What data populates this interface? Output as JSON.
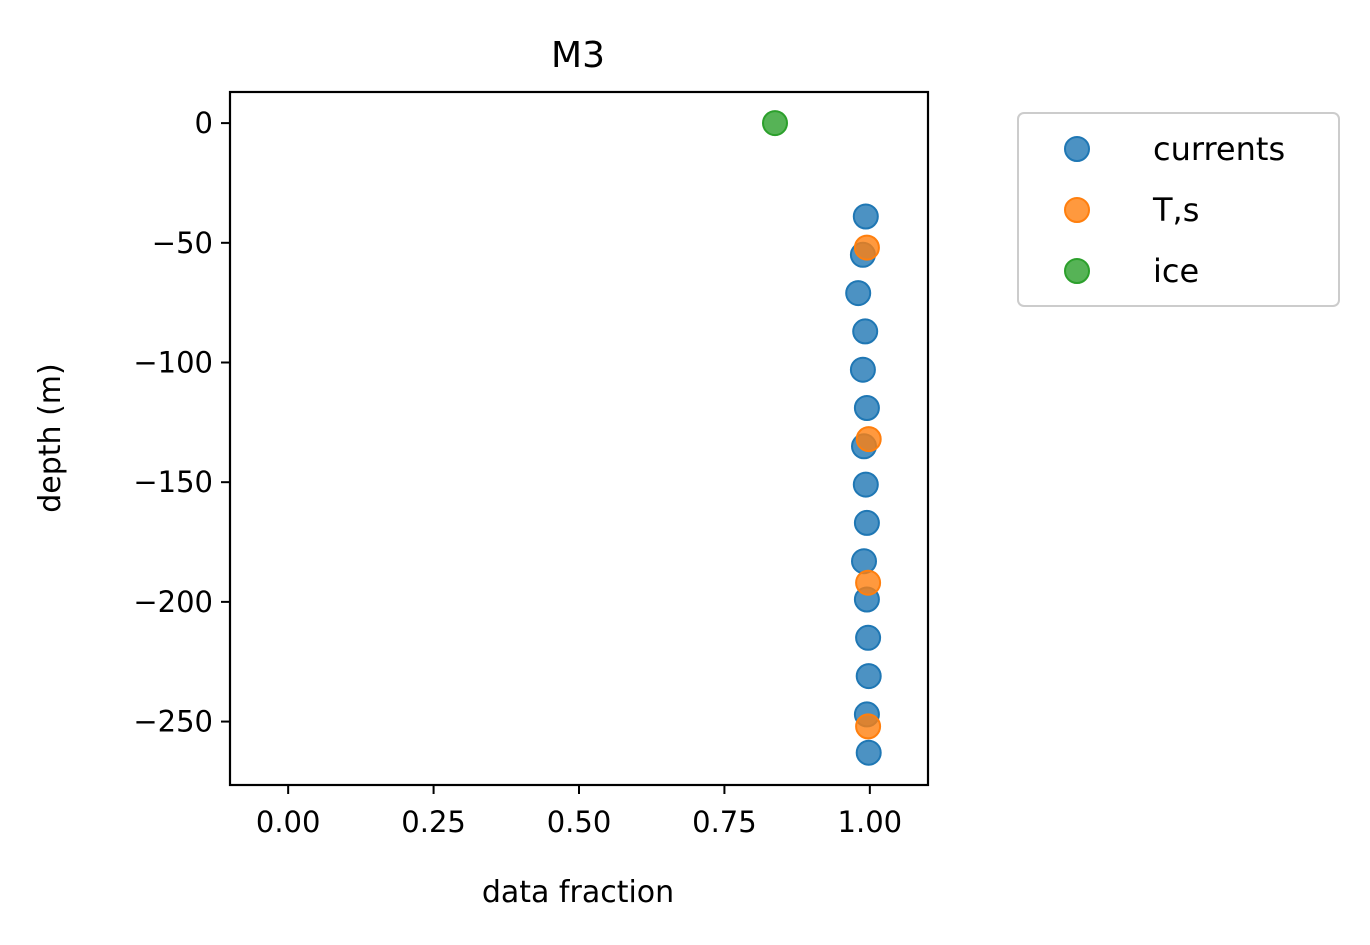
{
  "chart_data": {
    "type": "scatter",
    "title": "M3",
    "xlabel": "data fraction",
    "ylabel": "depth (m)",
    "xlim": [
      -0.1,
      1.1
    ],
    "ylim": [
      -276.5,
      13
    ],
    "xticks": [
      0.0,
      0.25,
      0.5,
      0.75,
      1.0
    ],
    "xtick_labels": [
      "0.00",
      "0.25",
      "0.50",
      "0.75",
      "1.00"
    ],
    "yticks": [
      0,
      -50,
      -100,
      -150,
      -200,
      -250
    ],
    "ytick_labels": [
      "0",
      "−50",
      "−100",
      "−150",
      "−200",
      "−250"
    ],
    "grid": false,
    "legend_position": "outside right, top",
    "series": [
      {
        "name": "currents",
        "color": "#1f77b4",
        "points": [
          {
            "x": 0.993,
            "y": -39
          },
          {
            "x": 0.988,
            "y": -55
          },
          {
            "x": 0.98,
            "y": -71
          },
          {
            "x": 0.992,
            "y": -87
          },
          {
            "x": 0.988,
            "y": -103
          },
          {
            "x": 0.995,
            "y": -119
          },
          {
            "x": 0.99,
            "y": -135
          },
          {
            "x": 0.993,
            "y": -151
          },
          {
            "x": 0.995,
            "y": -167
          },
          {
            "x": 0.99,
            "y": -183
          },
          {
            "x": 0.995,
            "y": -199
          },
          {
            "x": 0.997,
            "y": -215
          },
          {
            "x": 0.998,
            "y": -231
          },
          {
            "x": 0.995,
            "y": -247
          },
          {
            "x": 0.998,
            "y": -263
          }
        ]
      },
      {
        "name": "T,s",
        "color": "#ff7f0e",
        "points": [
          {
            "x": 0.995,
            "y": -52
          },
          {
            "x": 0.998,
            "y": -132
          },
          {
            "x": 0.997,
            "y": -192
          },
          {
            "x": 0.997,
            "y": -252
          }
        ]
      },
      {
        "name": "ice",
        "color": "#2ca02c",
        "points": [
          {
            "x": 0.837,
            "y": 0
          }
        ]
      }
    ]
  }
}
